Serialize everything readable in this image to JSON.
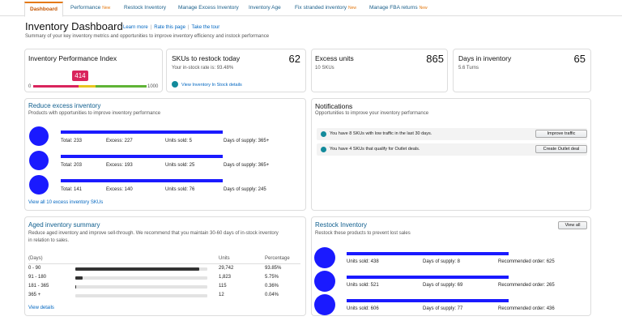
{
  "tabs": [
    {
      "label": "Dashboard"
    },
    {
      "label": "Performance",
      "badge": "New"
    },
    {
      "label": "Restock Inventory"
    },
    {
      "label": "Manage Excess Inventory"
    },
    {
      "label": "Inventory Age"
    },
    {
      "label": "Fix stranded inventory",
      "badge": "New"
    },
    {
      "label": "Manage FBA returns",
      "badge": "New"
    }
  ],
  "header": {
    "title": "Inventory Dashboard",
    "links": [
      "Learn more",
      "Rate this page",
      "Take the tour"
    ],
    "subtitle": "Summary of your key inventory metrics and opportunities to improve inventory efficiency and instock performance"
  },
  "ipi": {
    "title": "Inventory Performance Index",
    "score": 414,
    "scale": [
      0,
      1000
    ]
  },
  "restock_today": {
    "title": "SKUs to restock today",
    "value": 62,
    "note": "Your in-stock rate is: 93.48%",
    "link": "View Inventory In Stock details"
  },
  "excess_units": {
    "title": "Excess units",
    "value": 865,
    "note": "10 SKUs"
  },
  "days_in_inventory": {
    "title": "Days in inventory",
    "value": 65,
    "note": "5.6 Turns"
  },
  "reduce_excess": {
    "title": "Reduce excess inventory",
    "subtitle": "Products with opportunities to improve inventory performance",
    "items": [
      [
        "Total: 233",
        "Excess: 227",
        "Units sold: 5",
        "Days of supply: 365+"
      ],
      [
        "Total: 203",
        "Excess: 193",
        "Units sold: 25",
        "Days of supply: 365+"
      ],
      [
        "Total: 141",
        "Excess: 140",
        "Units sold: 76",
        "Days of supply: 245"
      ]
    ],
    "link": "View all 10 excess inventory SKUs"
  },
  "notifications": {
    "title": "Notifications",
    "subtitle": "Opportunities to improve your inventory performance",
    "rows": [
      {
        "text": "You have 8 SKUs with low traffic in the last 30 days.",
        "button": "Improve traffic"
      },
      {
        "text": "You have 4 SKUs that qualify for Outlet deals.",
        "button": "Create Outlet deal"
      }
    ]
  },
  "aged": {
    "title": "Aged inventory summary",
    "description": "Reduce aged inventory and improve sell-through. We recommend that you maintain 30-60 days of in-stock inventory in relation to sales.",
    "headers": [
      "(Days)",
      "Units",
      "Percentage"
    ],
    "rows": [
      {
        "range": "0 - 90",
        "units": "29,742",
        "percentage": {
          "value": 93.85,
          "label": "93.85%"
        }
      },
      {
        "range": "91 - 180",
        "units": "1,823",
        "percentage": {
          "value": 5.75,
          "label": "5.75%"
        }
      },
      {
        "range": "181 - 365",
        "units": "115",
        "percentage": {
          "value": 0.36,
          "label": "0.36%"
        }
      },
      {
        "range": "365 +",
        "units": "12",
        "percentage": {
          "value": 0.04,
          "label": "0.04%"
        }
      }
    ],
    "link": "View details"
  },
  "restock": {
    "title": "Restock Inventory",
    "button": "View all",
    "subtitle": "Restock these products to prevent lost sales",
    "items": [
      [
        "Units sold: 438",
        "Days of supply: 8",
        "Recommended order: 625"
      ],
      [
        "Units sold: 521",
        "Days of supply: 69",
        "Recommended order: 265"
      ],
      [
        "Units sold: 606",
        "Days of supply: 77",
        "Recommended order: 436"
      ]
    ]
  }
}
